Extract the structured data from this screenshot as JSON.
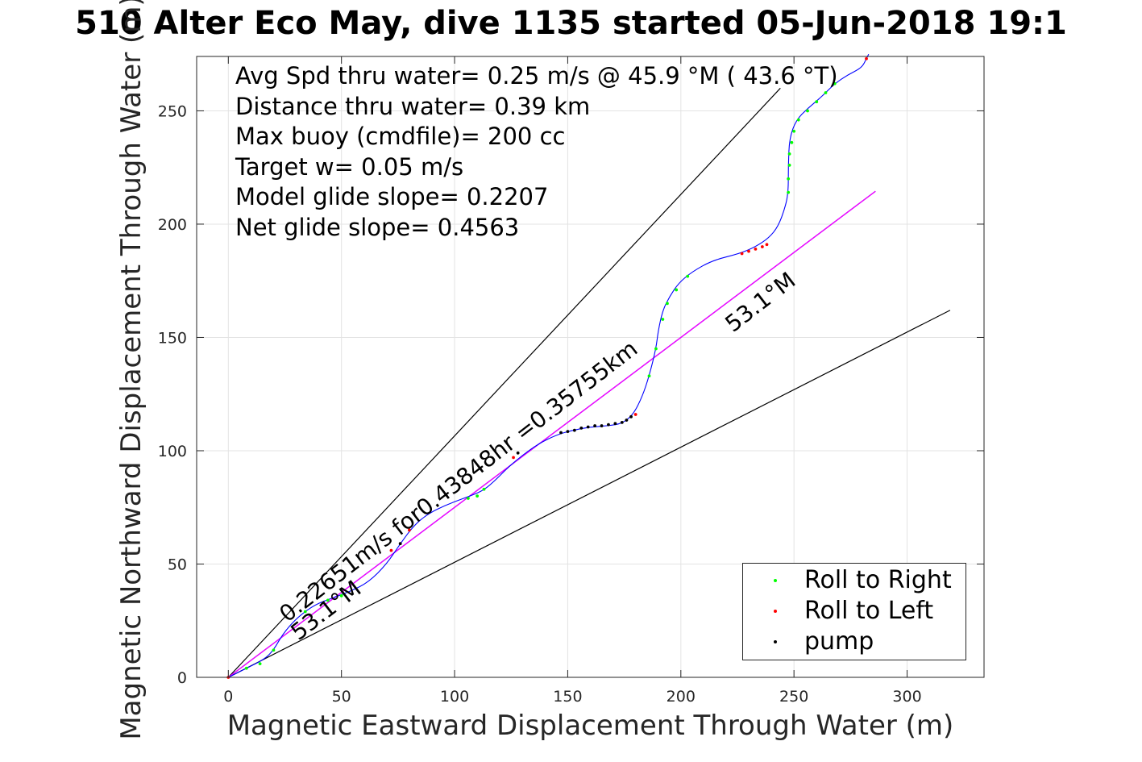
{
  "title": "510 Alter Eco May, dive 1135 started 05-Jun-2018 19:1",
  "info_lines": [
    "Avg Spd thru water=  0.25 m/s @  45.9 °M ( 43.6 °T)",
    "Distance thru water=  0.39 km",
    "Max buoy (cmdfile)= 200 cc",
    "Target w= 0.05 m/s",
    "Model glide slope= 0.2207",
    "Net glide slope= 0.4563"
  ],
  "legend": [
    {
      "label": "Roll to Right",
      "color": "#00ff00"
    },
    {
      "label": "Roll to Left",
      "color": "#ff0000"
    },
    {
      "label": "pump",
      "color": "#000000"
    }
  ],
  "chart_data": {
    "type": "line",
    "xlabel": "Magnetic Eastward Displacement Through Water (m)",
    "ylabel": "Magnetic Northward Displacement Through Water (m)",
    "xlim": [
      -14,
      334
    ],
    "ylim": [
      0,
      274
    ],
    "xticks": [
      0,
      50,
      100,
      150,
      200,
      250,
      300
    ],
    "yticks": [
      0,
      50,
      100,
      150,
      200,
      250
    ],
    "grid": true,
    "legend_position": "bottom-right",
    "track": {
      "color": "#0000ff",
      "points": [
        [
          0,
          0
        ],
        [
          8,
          4
        ],
        [
          16,
          8
        ],
        [
          20,
          12
        ],
        [
          24,
          19
        ],
        [
          30,
          26
        ],
        [
          38,
          32
        ],
        [
          46,
          35
        ],
        [
          54,
          38
        ],
        [
          62,
          42
        ],
        [
          70,
          50
        ],
        [
          76,
          59
        ],
        [
          82,
          67
        ],
        [
          88,
          72
        ],
        [
          96,
          76
        ],
        [
          104,
          79
        ],
        [
          112,
          82
        ],
        [
          117,
          86
        ],
        [
          124,
          93
        ],
        [
          130,
          98
        ],
        [
          137,
          103
        ],
        [
          145,
          107
        ],
        [
          152,
          109
        ],
        [
          160,
          110.5
        ],
        [
          168,
          111
        ],
        [
          174,
          112
        ],
        [
          179,
          116
        ],
        [
          183,
          124
        ],
        [
          186,
          133
        ],
        [
          189,
          145
        ],
        [
          190,
          153
        ],
        [
          192,
          162
        ],
        [
          195,
          168
        ],
        [
          199,
          174
        ],
        [
          205,
          179
        ],
        [
          214,
          184
        ],
        [
          226,
          187
        ],
        [
          233,
          190
        ],
        [
          239,
          194
        ],
        [
          243,
          199
        ],
        [
          246,
          207
        ],
        [
          247.5,
          214
        ],
        [
          247.5,
          226
        ],
        [
          248,
          238
        ],
        [
          251,
          246
        ],
        [
          256,
          251
        ],
        [
          262,
          256
        ],
        [
          268,
          262
        ],
        [
          274,
          266
        ],
        [
          280,
          269
        ],
        [
          282,
          273
        ],
        [
          283,
          275
        ]
      ]
    },
    "model_line": {
      "color": "#ff00ff",
      "x": [
        0,
        286
      ],
      "y": [
        0,
        214.5
      ]
    },
    "fit_line": {
      "color": "#0000ff",
      "x": [
        0,
        286
      ],
      "y": [
        0,
        214.5
      ]
    },
    "reference_lines": [
      {
        "color": "#000000",
        "x": [
          0,
          244
        ],
        "y": [
          0,
          260
        ]
      },
      {
        "color": "#000000",
        "x": [
          0,
          319
        ],
        "y": [
          0,
          162
        ]
      }
    ],
    "markers": {
      "roll_right": {
        "color": "#00ff00",
        "points": [
          [
            8,
            4
          ],
          [
            14,
            6
          ],
          [
            20,
            12
          ],
          [
            34,
            29
          ],
          [
            44,
            34
          ],
          [
            50,
            36
          ],
          [
            106,
            79
          ],
          [
            110,
            80
          ],
          [
            113,
            83
          ],
          [
            186,
            133
          ],
          [
            189,
            145
          ],
          [
            192,
            158
          ],
          [
            194,
            165
          ],
          [
            198,
            171
          ],
          [
            203,
            177
          ],
          [
            247.5,
            214
          ],
          [
            247.5,
            220
          ],
          [
            248,
            226
          ],
          [
            248,
            231
          ],
          [
            249,
            236
          ],
          [
            250,
            241
          ],
          [
            252,
            246
          ],
          [
            256,
            250
          ],
          [
            260,
            254
          ],
          [
            264,
            258
          ],
          [
            268,
            262
          ]
        ]
      },
      "roll_left": {
        "color": "#ff0000",
        "points": [
          [
            0,
            0
          ],
          [
            72,
            56
          ],
          [
            80,
            65
          ],
          [
            126,
            97
          ],
          [
            180,
            116
          ],
          [
            227,
            187
          ],
          [
            230,
            188
          ],
          [
            233,
            189
          ],
          [
            236,
            190
          ],
          [
            238,
            191
          ],
          [
            282,
            273
          ]
        ]
      },
      "pump": {
        "color": "#000000",
        "points": [
          [
            76,
            59
          ],
          [
            128,
            99
          ],
          [
            147,
            108
          ],
          [
            150,
            108.5
          ],
          [
            153,
            109
          ],
          [
            156,
            110
          ],
          [
            159,
            110.5
          ],
          [
            162,
            111
          ],
          [
            165,
            111
          ],
          [
            168,
            111.5
          ],
          [
            171,
            112
          ],
          [
            174,
            112.5
          ],
          [
            176,
            113.5
          ],
          [
            178,
            115
          ]
        ]
      }
    },
    "annotations": [
      {
        "text": "0.22651m/s for0.43848hr =0.35755km",
        "x": 26,
        "y": 24,
        "angle_deg": 37.6
      },
      {
        "text": "53.1°M",
        "x": 31,
        "y": 16,
        "angle_deg": 37.6
      },
      {
        "text": "53.1°M",
        "x": 223,
        "y": 152,
        "angle_deg": 37.6
      }
    ]
  }
}
